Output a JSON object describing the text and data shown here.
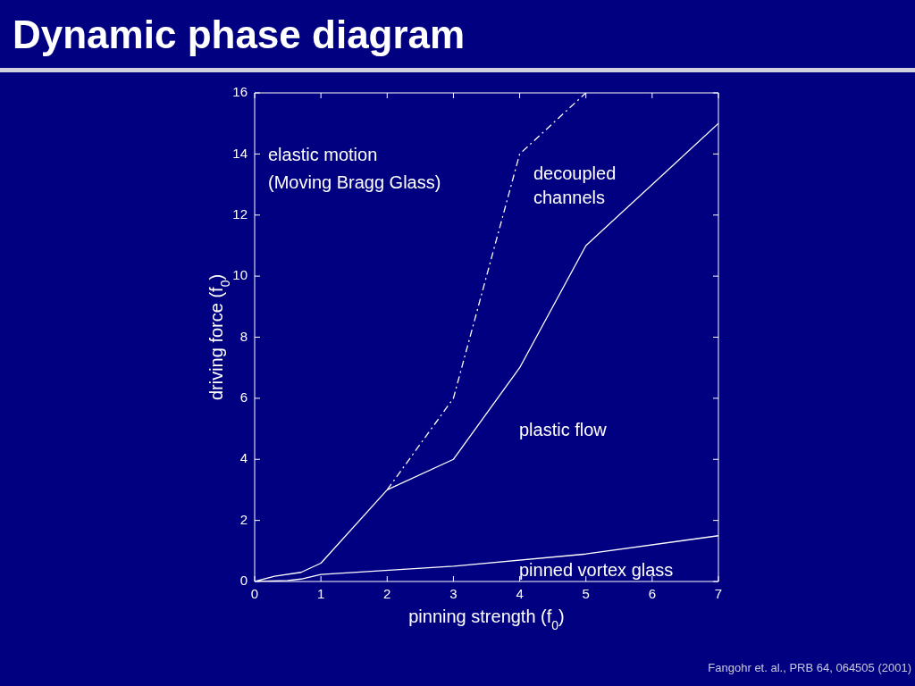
{
  "chart_data": {
    "type": "line",
    "title": "Dynamic phase diagram",
    "xlabel": "pinning strength (f$_{0}$)",
    "ylabel": "driving force (f$_{0}$)",
    "xlim": [
      0,
      7
    ],
    "ylim": [
      0,
      16
    ],
    "xticks": [
      0,
      1,
      2,
      3,
      4,
      5,
      6,
      7
    ],
    "yticks": [
      0,
      2,
      4,
      6,
      8,
      10,
      12,
      14,
      16
    ],
    "grid": false,
    "legend": false,
    "marker": "none",
    "series": [
      {
        "color": "#ffffff",
        "x": [
          0,
          0.3,
          0.7,
          1,
          2,
          3,
          4,
          5,
          7
        ],
        "values": [
          0,
          0.17,
          0.3,
          0.6,
          3,
          4,
          7,
          11,
          15
        ]
      },
      {
        "color": "#ffffff",
        "line_style": "dashed",
        "x": [
          2,
          3,
          4,
          5
        ],
        "values": [
          3,
          6,
          14,
          16
        ]
      },
      {
        "color": "#ffffff",
        "x": [
          0,
          0.5,
          0.7,
          1,
          3,
          5,
          7
        ],
        "values": [
          0,
          0.03,
          0.08,
          0.23,
          0.5,
          0.9,
          1.5
        ]
      }
    ],
    "annotations": [
      "elastic motion",
      "(Moving Bragg Glass)",
      "decoupled",
      "channels",
      "plastic flow",
      "pinned vortex glass",
      "Fangohr et. al., PRB 64, 064505 (2001)"
    ]
  }
}
